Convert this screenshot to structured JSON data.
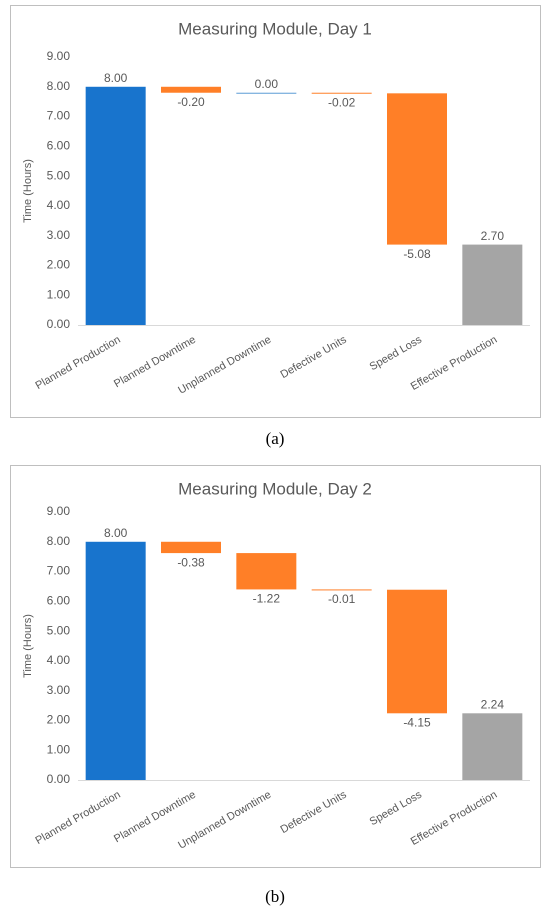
{
  "chart_data": [
    {
      "type": "waterfall",
      "title": "Measuring Module, Day 1",
      "ylabel": "Time (Hours)",
      "categories": [
        "Planned Production",
        "Planned Downtime",
        "Unplanned Downtime",
        "Defective Units",
        "Speed Loss",
        "Effective Production"
      ],
      "values": [
        8.0,
        -0.2,
        0.0,
        -0.02,
        -5.08,
        2.7
      ],
      "value_labels": [
        "8.00",
        "-0.20",
        "0.00",
        "-0.02",
        "-5.08",
        "2.70"
      ],
      "colors": [
        "#1874cd",
        "#ff7f27",
        "#5b9bd5",
        "#ff7f27",
        "#ff7f27",
        "#a5a5a5"
      ],
      "ylim": [
        0,
        9
      ],
      "yticks": [
        {
          "value": 0,
          "label": "0.00"
        },
        {
          "value": 1,
          "label": "1.00"
        },
        {
          "value": 2,
          "label": "2.00"
        },
        {
          "value": 3,
          "label": "3.00"
        },
        {
          "value": 4,
          "label": "4.00"
        },
        {
          "value": 5,
          "label": "5.00"
        },
        {
          "value": 6,
          "label": "6.00"
        },
        {
          "value": 7,
          "label": "7.00"
        },
        {
          "value": 8,
          "label": "8.00"
        },
        {
          "value": 9,
          "label": "9.00"
        }
      ],
      "caption": "(a)"
    },
    {
      "type": "waterfall",
      "title": "Measuring Module, Day 2",
      "ylabel": "Time (Hours)",
      "categories": [
        "Planned Production",
        "Planned Downtime",
        "Unplanned Downtime",
        "Defective Units",
        "Speed Loss",
        "Effective Production"
      ],
      "values": [
        8.0,
        -0.38,
        -1.22,
        -0.01,
        -4.15,
        2.24
      ],
      "value_labels": [
        "8.00",
        "-0.38",
        "-1.22",
        "-0.01",
        "-4.15",
        "2.24"
      ],
      "colors": [
        "#1874cd",
        "#ff7f27",
        "#ff7f27",
        "#ff7f27",
        "#ff7f27",
        "#a5a5a5"
      ],
      "ylim": [
        0,
        9
      ],
      "yticks": [
        {
          "value": 0,
          "label": "0.00"
        },
        {
          "value": 1,
          "label": "1.00"
        },
        {
          "value": 2,
          "label": "2.00"
        },
        {
          "value": 3,
          "label": "3.00"
        },
        {
          "value": 4,
          "label": "4.00"
        },
        {
          "value": 5,
          "label": "5.00"
        },
        {
          "value": 6,
          "label": "6.00"
        },
        {
          "value": 7,
          "label": "7.00"
        },
        {
          "value": 8,
          "label": "8.00"
        },
        {
          "value": 9,
          "label": "9.00"
        }
      ],
      "caption": "(b)"
    }
  ]
}
